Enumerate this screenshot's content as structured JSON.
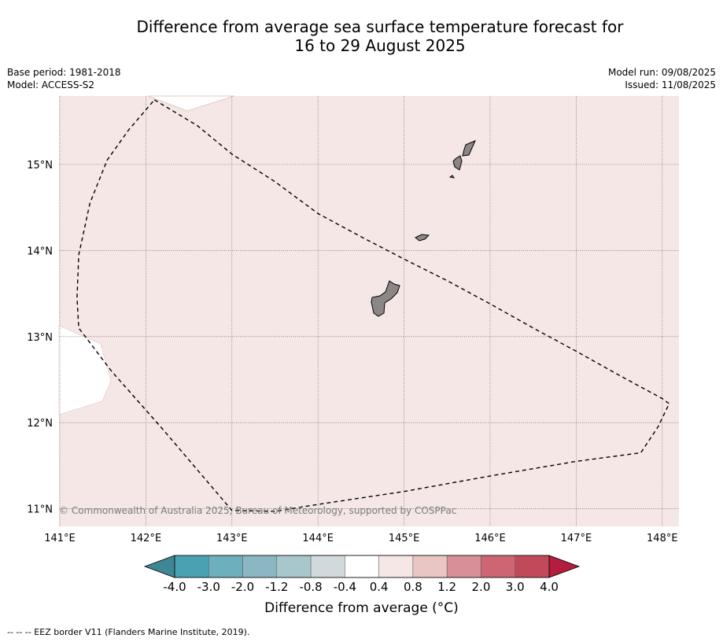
{
  "title": {
    "line1": "Difference from average sea surface temperature forecast for",
    "line2": "16 to 29 August 2025"
  },
  "info_left": {
    "base_period": "Base period: 1981-2018",
    "model": "Model: ACCESS-S2"
  },
  "info_right": {
    "model_run": "Model run: 09/08/2025",
    "issued": "Issued: 11/08/2025"
  },
  "map": {
    "lon_range": [
      141.0,
      148.2
    ],
    "lat_range": [
      10.8,
      15.8
    ],
    "lon_ticks": [
      141,
      142,
      143,
      144,
      145,
      146,
      147,
      148
    ],
    "lon_labels": [
      "141°E",
      "142°E",
      "143°E",
      "144°E",
      "145°E",
      "146°E",
      "147°E",
      "148°E"
    ],
    "lat_ticks": [
      15,
      14,
      13,
      12,
      11
    ],
    "lat_labels": [
      "15°N",
      "14°N",
      "13°N",
      "12°N",
      "11°N"
    ],
    "gridlines": true,
    "ocean_anomaly_color": "#f4e7e5",
    "no_data_color": "#ffffff",
    "land_color": "#8c8787",
    "copyright": "© Commonwealth of Australia 2025, Bureau of Meteorology, supported by COSPPac",
    "eez_border": [
      [
        142.1,
        15.75
      ],
      [
        142.6,
        15.45
      ],
      [
        143.0,
        15.12
      ],
      [
        143.5,
        14.8
      ],
      [
        144.0,
        14.43
      ],
      [
        144.5,
        14.16
      ],
      [
        145.0,
        13.9
      ],
      [
        145.5,
        13.65
      ],
      [
        146.0,
        13.38
      ],
      [
        146.5,
        13.1
      ],
      [
        147.0,
        12.83
      ],
      [
        147.5,
        12.55
      ],
      [
        148.0,
        12.28
      ],
      [
        148.08,
        12.22
      ],
      [
        147.95,
        11.95
      ],
      [
        147.75,
        11.65
      ],
      [
        147.0,
        11.55
      ],
      [
        146.0,
        11.38
      ],
      [
        145.0,
        11.2
      ],
      [
        144.0,
        11.05
      ],
      [
        143.5,
        10.97
      ],
      [
        143.0,
        10.98
      ],
      [
        142.6,
        11.45
      ],
      [
        142.2,
        11.92
      ],
      [
        141.6,
        12.6
      ],
      [
        141.22,
        13.1
      ],
      [
        141.2,
        13.45
      ],
      [
        141.22,
        13.95
      ],
      [
        141.35,
        14.55
      ],
      [
        141.55,
        15.05
      ],
      [
        141.8,
        15.4
      ],
      [
        142.1,
        15.75
      ]
    ]
  },
  "colorbar": {
    "tick_labels": [
      "-4.0",
      "-3.0",
      "-2.0",
      "-1.2",
      "-0.8",
      "-0.4",
      "0.4",
      "0.8",
      "1.2",
      "2.0",
      "3.0",
      "4.0"
    ],
    "under_color": "#3f8795",
    "over_color": "#b31d3e",
    "colors": [
      "#49a1b2",
      "#6dafbd",
      "#8bb7c3",
      "#a8c7cc",
      "#d2d9dc",
      "#ffffff",
      "#f4e7e5",
      "#e9c6c3",
      "#d98f98",
      "#cd6672",
      "#c14a5a"
    ],
    "label": "Difference from average (°C)"
  },
  "footnote": "--  --  -- EEZ border V11 (Flanders Marine Institute, 2019)."
}
